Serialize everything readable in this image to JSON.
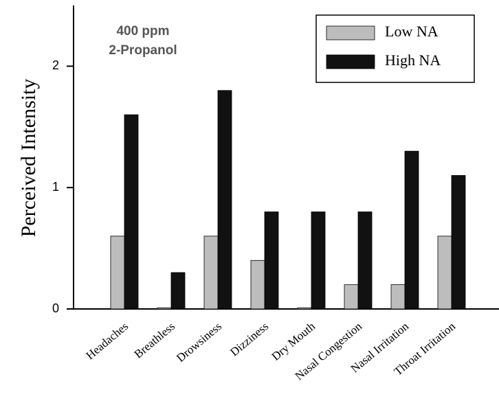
{
  "chart_data": {
    "type": "bar",
    "y_label": "Perceived Intensity",
    "annotation": [
      "400 ppm",
      "2-Propanol"
    ],
    "categories": [
      "Headaches",
      "Breathless",
      "Drowsiness",
      "Dizziness",
      "Dry Mouth",
      "Nasal Congestion",
      "Nasal Irritation",
      "Throat Irritation"
    ],
    "series": [
      {
        "name": "Low NA",
        "color": "#bdbdbd",
        "values": [
          0.6,
          0.01,
          0.6,
          0.4,
          0.01,
          0.2,
          0.2,
          0.6
        ]
      },
      {
        "name": "High NA",
        "color": "#111111",
        "values": [
          1.6,
          0.3,
          1.8,
          0.8,
          0.8,
          0.8,
          1.3,
          1.1
        ]
      }
    ],
    "ylim": [
      0,
      2.5
    ],
    "yticks": [
      0,
      1,
      2
    ],
    "grid": false,
    "legend": "upper right"
  }
}
